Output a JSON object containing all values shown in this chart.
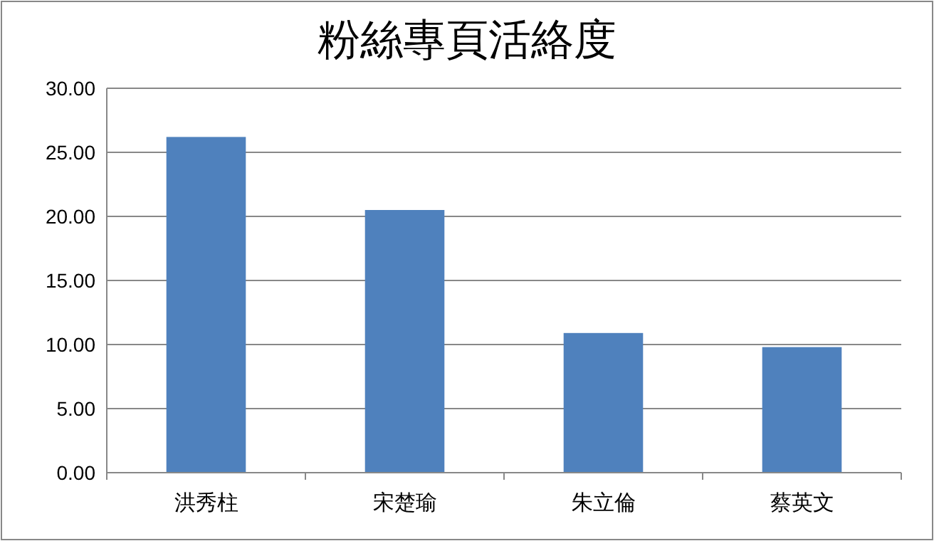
{
  "chart_data": {
    "type": "bar",
    "title": "粉絲專頁活絡度",
    "categories": [
      "洪秀柱",
      "宋楚瑜",
      "朱立倫",
      "蔡英文"
    ],
    "values": [
      26.2,
      20.5,
      10.9,
      9.8
    ],
    "color": "#4f81bd",
    "ylim": [
      0,
      30
    ],
    "yticks": [
      {
        "value": 0,
        "label": "0.00"
      },
      {
        "value": 5,
        "label": "5.00"
      },
      {
        "value": 10,
        "label": "10.00"
      },
      {
        "value": 15,
        "label": "15.00"
      },
      {
        "value": 20,
        "label": "20.00"
      },
      {
        "value": 25,
        "label": "25.00"
      },
      {
        "value": 30,
        "label": "30.00"
      }
    ],
    "grid": "y"
  }
}
